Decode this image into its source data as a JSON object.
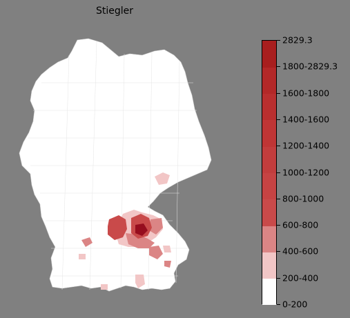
{
  "title": "Stiegler",
  "legend": {
    "labels": [
      "0-200",
      "200-400",
      "400-600",
      "600-800",
      "800-1000",
      "1000-1200",
      "1200-1400",
      "1400-1600",
      "1600-1800",
      "1800-2829.3",
      "2829.3"
    ],
    "colors": [
      "#ffffff",
      "#f2c6c6",
      "#db8585",
      "#c94a4a",
      "#c64343",
      "#c23d3d",
      "#bf3535",
      "#b92f2f",
      "#b32828",
      "#a81e1e",
      "#960d1e"
    ]
  },
  "map": {
    "background_region_color": "#ffffff",
    "highlight_regions": [
      {
        "name": "east-bavaria-cluster",
        "category": "1800-2829.3"
      },
      {
        "name": "west-cluster",
        "category": "1000-1200"
      },
      {
        "name": "central-band",
        "category": "600-800"
      },
      {
        "name": "north-spot",
        "category": "200-400"
      },
      {
        "name": "southeast-spots",
        "category": "600-800"
      },
      {
        "name": "south-spots",
        "category": "200-400"
      },
      {
        "name": "west-small-spot",
        "category": "600-800"
      }
    ]
  }
}
